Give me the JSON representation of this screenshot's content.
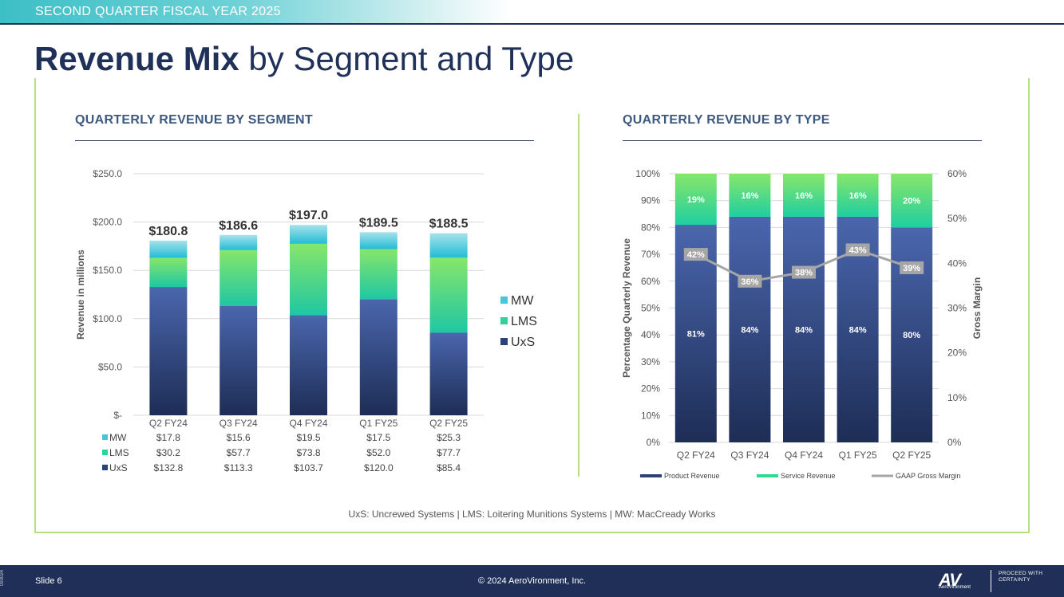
{
  "header": {
    "banner_text": "SECOND QUARTER FISCAL YEAR 2025",
    "title_bold": "Revenue Mix",
    "title_rest": " by Segment and Type"
  },
  "panels": {
    "left_title": "QUARTERLY REVENUE BY SEGMENT",
    "right_title": "QUARTERLY REVENUE BY TYPE"
  },
  "colors": {
    "uxs": "#2c4274",
    "lms": "#2ed398",
    "mw": "#4ac4d8",
    "product": "#2c4274",
    "service": "#30d890",
    "gross_margin": "#a6a6a6",
    "accent_green": "#b7e17e",
    "navy": "#1f2f57"
  },
  "chart_data": [
    {
      "type": "bar",
      "stacked": true,
      "title": "QUARTERLY REVENUE BY SEGMENT",
      "categories": [
        "Q2 FY24",
        "Q3 FY24",
        "Q4 FY24",
        "Q1 FY25",
        "Q2 FY25"
      ],
      "series": [
        {
          "name": "UxS",
          "values": [
            132.8,
            113.3,
            103.7,
            120.0,
            85.4
          ],
          "table_values": [
            "$132.8",
            "$113.3",
            "$103.7",
            "$120.0",
            "$85.4"
          ]
        },
        {
          "name": "LMS",
          "values": [
            30.2,
            57.7,
            73.8,
            52.0,
            77.7
          ],
          "table_values": [
            "$30.2",
            "$57.7",
            "$73.8",
            "$52.0",
            "$77.7"
          ]
        },
        {
          "name": "MW",
          "values": [
            17.8,
            15.6,
            19.5,
            17.5,
            25.3
          ],
          "table_values": [
            "$17.8",
            "$15.6",
            "$19.5",
            "$17.5",
            "$25.3"
          ]
        }
      ],
      "totals": [
        "$180.8",
        "$186.6",
        "$197.0",
        "$189.5",
        "$188.5"
      ],
      "ylabel": "Revenue in millions",
      "ylim": [
        0,
        250
      ],
      "yticks": [
        0,
        50,
        100,
        150,
        200,
        250
      ],
      "ytick_labels": [
        "$-",
        "$50.0",
        "$100.0",
        "$150.0",
        "$200.0",
        "$250.0"
      ],
      "legend": [
        "MW",
        "LMS",
        "UxS"
      ],
      "legend_position": "right",
      "grid": true
    },
    {
      "type": "bar",
      "stacked": true,
      "title": "QUARTERLY REVENUE BY TYPE",
      "categories": [
        "Q2 FY24",
        "Q3 FY24",
        "Q4 FY24",
        "Q1 FY25",
        "Q2 FY25"
      ],
      "series": [
        {
          "name": "Product Revenue",
          "values": [
            81,
            84,
            84,
            84,
            80
          ],
          "labels": [
            "81%",
            "84%",
            "84%",
            "84%",
            "80%"
          ]
        },
        {
          "name": "Service Revenue",
          "values": [
            19,
            16,
            16,
            16,
            20
          ],
          "labels": [
            "19%",
            "16%",
            "16%",
            "16%",
            "20%"
          ]
        }
      ],
      "line_series": {
        "name": "GAAP Gross Margin",
        "axis": "right",
        "values": [
          42,
          36,
          38,
          43,
          39
        ],
        "labels": [
          "42%",
          "36%",
          "38%",
          "43%",
          "39%"
        ]
      },
      "ylabel": "Percentage Quarterly  Revenue",
      "y2label": "Gross Margin",
      "ylim": [
        0,
        100
      ],
      "y2lim": [
        0,
        60
      ],
      "yticks": [
        0,
        10,
        20,
        30,
        40,
        50,
        60,
        70,
        80,
        90,
        100
      ],
      "ytick_labels": [
        "0%",
        "10%",
        "20%",
        "30%",
        "40%",
        "50%",
        "60%",
        "70%",
        "80%",
        "90%",
        "100%"
      ],
      "y2ticks": [
        0,
        10,
        20,
        30,
        40,
        50,
        60
      ],
      "y2tick_labels": [
        "0%",
        "10%",
        "20%",
        "30%",
        "40%",
        "50%",
        "60%"
      ],
      "legend": [
        "Product Revenue",
        "Service Revenue",
        "GAAP Gross Margin"
      ],
      "legend_position": "bottom",
      "grid": true
    }
  ],
  "footnote": "UxS: Uncrewed Systems  |  LMS: Loitering Munitions Systems  |  MW: MacCready Works",
  "footer": {
    "doc_code": "093024",
    "slide_label": "Slide 6",
    "copyright": "© 2024 AeroVironment, Inc.",
    "logo_mark": "AV",
    "logo_sub": "AeroVironment",
    "tagline": "PROCEED WITH CERTAINTY"
  }
}
